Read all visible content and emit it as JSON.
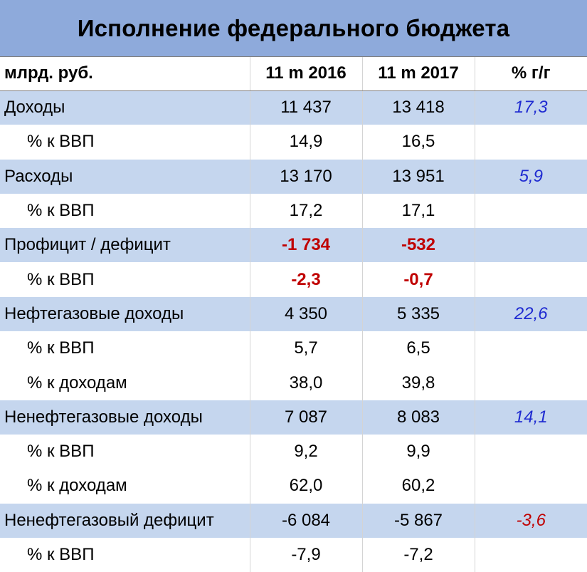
{
  "title": "Исполнение федерального бюджета",
  "header": {
    "unit": "млрд. руб.",
    "col1": "11 m 2016",
    "col2": "11 m 2017",
    "col3": "% г/г"
  },
  "rows": [
    {
      "label": "Доходы",
      "v2016": "11 437",
      "v2017": "13 418",
      "yoy": "17,3"
    },
    {
      "label": "% к ВВП",
      "v2016": "14,9",
      "v2017": "16,5",
      "yoy": ""
    },
    {
      "label": "Расходы",
      "v2016": "13 170",
      "v2017": "13 951",
      "yoy": "5,9"
    },
    {
      "label": "% к ВВП",
      "v2016": "17,2",
      "v2017": "17,1",
      "yoy": ""
    },
    {
      "label": "Профицит / дефицит",
      "v2016": "-1 734",
      "v2017": "-532",
      "yoy": ""
    },
    {
      "label": "% к ВВП",
      "v2016": "-2,3",
      "v2017": "-0,7",
      "yoy": ""
    },
    {
      "label": "Нефтегазовые доходы",
      "v2016": "4 350",
      "v2017": "5 335",
      "yoy": "22,6"
    },
    {
      "label": "% к ВВП",
      "v2016": "5,7",
      "v2017": "6,5",
      "yoy": ""
    },
    {
      "label": "% к доходам",
      "v2016": "38,0",
      "v2017": "39,8",
      "yoy": ""
    },
    {
      "label": "Ненефтегазовые доходы",
      "v2016": "7 087",
      "v2017": "8 083",
      "yoy": "14,1"
    },
    {
      "label": "% к ВВП",
      "v2016": "9,2",
      "v2017": "9,9",
      "yoy": ""
    },
    {
      "label": "% к доходам",
      "v2016": "62,0",
      "v2017": "60,2",
      "yoy": ""
    },
    {
      "label": "Ненефтегазовый дефицит",
      "v2016": "-6 084",
      "v2017": "-5 867",
      "yoy": "-3,6"
    },
    {
      "label": "% к ВВП",
      "v2016": "-7,9",
      "v2017": "-7,2",
      "yoy": ""
    }
  ],
  "colors": {
    "title_bg": "#8eaadb",
    "main_row_bg": "#c5d6ee",
    "negative_bold": "#c00000",
    "pct_positive": "#1f2bd1",
    "pct_negative": "#c00000"
  }
}
